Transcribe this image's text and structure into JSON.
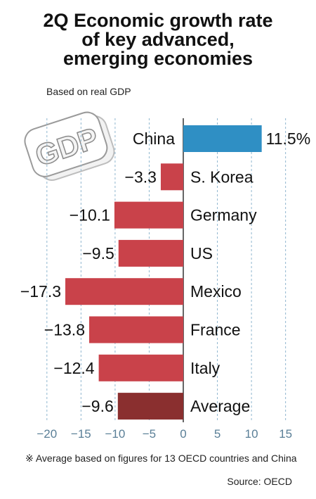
{
  "title_lines": [
    "2Q Economic growth rate",
    "of key advanced,",
    "emerging economies"
  ],
  "subtitle": "Based on real GDP",
  "footnote": "※ Average based on figures for 13 OECD countries and China",
  "source": "Source: OECD",
  "decoration_text": "GDP",
  "chart_data": {
    "type": "bar",
    "orientation": "horizontal",
    "categories": [
      "China",
      "S. Korea",
      "Germany",
      "US",
      "Mexico",
      "France",
      "Italy",
      "Average"
    ],
    "values": [
      11.5,
      -3.3,
      -10.1,
      -9.5,
      -17.3,
      -13.8,
      -12.4,
      -9.6
    ],
    "value_labels": [
      "11.5%",
      "−3.3",
      "−10.1",
      "−9.5",
      "−17.3",
      "−13.8",
      "−12.4",
      "−9.6"
    ],
    "xlim": [
      -20,
      15
    ],
    "xticks": [
      -20,
      -15,
      -10,
      -5,
      0,
      5,
      10,
      15
    ],
    "xtick_labels": [
      "−20",
      "−15",
      "−10",
      "−5",
      "0",
      "5",
      "10",
      "15"
    ],
    "grid": true,
    "colors": {
      "positive": "#2f8fc4",
      "negative": "#c9424a",
      "average": "#8a2f2f",
      "grid": "#8fb6cf"
    }
  }
}
